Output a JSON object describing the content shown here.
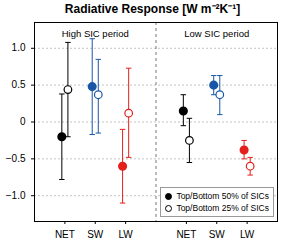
{
  "chart_data": {
    "type": "scatter",
    "title": "Radiative Response [W m⁻²K⁻¹]",
    "colors": [
      "#000000",
      "#1a56a6",
      "#e3201c"
    ],
    "ylim": [
      -1.35,
      1.35
    ],
    "yticks": [
      {
        "value": -1,
        "label": "−1.0"
      },
      {
        "value": -0.5,
        "label": "−0.5"
      },
      0,
      0.5,
      {
        "value": 1,
        "label": "1.0"
      }
    ],
    "grid": true,
    "legend": "bottom-right",
    "panels": [
      {
        "title": "High SIC period",
        "categories": [
          "NET",
          "SW",
          "LW"
        ],
        "series": [
          {
            "name": "Top/Bottom 50% of SICs",
            "marker": "filled",
            "values": [
              -0.2,
              0.48,
              -0.6
            ],
            "error_low": [
              -0.78,
              -0.17,
              -1.1
            ],
            "error_high": [
              0.38,
              1.13,
              -0.1
            ]
          },
          {
            "name": "Top/Bottom 25% of SICs",
            "marker": "open",
            "values": [
              0.44,
              0.37,
              0.12
            ],
            "error_low": [
              -0.2,
              -0.15,
              -0.48
            ],
            "error_high": [
              1.08,
              0.85,
              0.73
            ]
          }
        ]
      },
      {
        "title": "Low SIC period",
        "categories": [
          "NET",
          "SW",
          "LW"
        ],
        "series": [
          {
            "name": "Top/Bottom 50% of SICs",
            "marker": "filled",
            "values": [
              0.15,
              0.5,
              -0.38
            ],
            "error_low": [
              -0.05,
              0.37,
              -0.5
            ],
            "error_high": [
              0.37,
              0.63,
              -0.25
            ]
          },
          {
            "name": "Top/Bottom 25% of SICs",
            "marker": "open",
            "values": [
              -0.25,
              0.37,
              -0.6
            ],
            "error_low": [
              -0.55,
              0.1,
              -0.72
            ],
            "error_high": [
              0.05,
              0.63,
              -0.48
            ]
          }
        ]
      }
    ]
  }
}
